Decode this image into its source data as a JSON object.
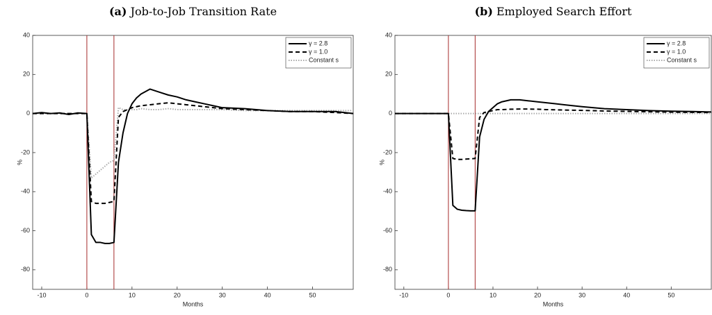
{
  "chart_data": [
    {
      "type": "line",
      "panel_label": "(a)",
      "title": "Job-to-Job Transition Rate",
      "xlabel": "Months",
      "ylabel": "%",
      "xlim": [
        -12,
        59
      ],
      "xticks": [
        -10,
        0,
        10,
        20,
        30,
        40,
        50
      ],
      "ylim": [
        -90,
        40
      ],
      "yticks": [
        -80,
        -60,
        -40,
        -20,
        0,
        20,
        40
      ],
      "vlines": [
        0,
        6
      ],
      "vline_color": "#a52a2a",
      "legend": "upper right",
      "x": [
        -12,
        -10,
        -8,
        -6,
        -4,
        -2,
        0,
        1,
        2,
        3,
        4,
        5,
        6,
        7,
        8,
        9,
        10,
        11,
        12,
        14,
        16,
        18,
        20,
        22,
        24,
        26,
        28,
        30,
        35,
        40,
        45,
        50,
        55,
        59
      ],
      "series": [
        {
          "name": "γ = 2.8",
          "color": "#000000",
          "style": "solid",
          "values": [
            0,
            0.5,
            0,
            0.3,
            -0.5,
            0.3,
            0,
            -62,
            -66,
            -66,
            -66.5,
            -66.5,
            -66,
            -25,
            -10,
            0,
            5,
            8,
            10,
            12.5,
            11,
            9.5,
            8.5,
            7,
            6,
            5,
            4,
            3,
            2.5,
            1.5,
            1,
            1,
            1,
            0
          ]
        },
        {
          "name": "γ = 1.0",
          "color": "#000000",
          "style": "dashed",
          "values": [
            0,
            0,
            0,
            0,
            0,
            0,
            0,
            -45,
            -46,
            -46,
            -46,
            -45.5,
            -45,
            -2,
            1,
            2,
            3,
            3.5,
            4,
            4.5,
            5,
            5.5,
            5,
            4.5,
            4,
            3.5,
            3,
            2.5,
            2,
            1.5,
            1,
            1,
            0.5,
            0
          ]
        },
        {
          "name": "Constant s",
          "color": "#aaaaaa",
          "style": "dotted",
          "values": [
            0,
            0,
            0,
            0,
            0,
            0,
            0,
            -33,
            -31,
            -29,
            -27,
            -25,
            -24,
            3,
            2,
            2,
            2,
            2,
            2.5,
            2,
            2,
            2.5,
            2,
            2,
            2,
            2,
            2,
            2,
            1.5,
            1.5,
            1.5,
            1.5,
            1.5,
            1.5
          ]
        }
      ]
    },
    {
      "type": "line",
      "panel_label": "(b)",
      "title": "Employed Search Effort",
      "xlabel": "Months",
      "ylabel": "%",
      "xlim": [
        -12,
        59
      ],
      "xticks": [
        -10,
        0,
        10,
        20,
        30,
        40,
        50
      ],
      "ylim": [
        -90,
        40
      ],
      "yticks": [
        -80,
        -60,
        -40,
        -20,
        0,
        20,
        40
      ],
      "vlines": [
        0,
        6
      ],
      "vline_color": "#a52a2a",
      "legend": "upper right",
      "x": [
        -12,
        -10,
        -8,
        -6,
        -4,
        -2,
        0,
        1,
        2,
        3,
        4,
        5,
        6,
        7,
        8,
        9,
        10,
        11,
        12,
        14,
        16,
        18,
        20,
        22,
        24,
        26,
        28,
        30,
        35,
        40,
        45,
        50,
        55,
        59
      ],
      "series": [
        {
          "name": "γ = 2.8",
          "color": "#000000",
          "style": "solid",
          "values": [
            0,
            0,
            0,
            0,
            0,
            0,
            0,
            -47,
            -49,
            -49.5,
            -49.7,
            -49.8,
            -49.8,
            -12,
            -3,
            1,
            3,
            5,
            6,
            7,
            7,
            6.5,
            6,
            5.5,
            5,
            4.5,
            4,
            3.5,
            2.5,
            2,
            1.5,
            1.2,
            1,
            0.8
          ]
        },
        {
          "name": "γ = 1.0",
          "color": "#000000",
          "style": "dashed",
          "values": [
            0,
            0,
            0,
            0,
            0,
            0,
            0,
            -23,
            -23.5,
            -23.5,
            -23.3,
            -23.2,
            -23,
            -2,
            0.5,
            1,
            1.5,
            2,
            2,
            2.2,
            2.3,
            2.3,
            2.2,
            2,
            1.9,
            1.8,
            1.7,
            1.6,
            1.3,
            1.1,
            0.9,
            0.7,
            0.6,
            0.5
          ]
        },
        {
          "name": "Constant s",
          "color": "#aaaaaa",
          "style": "dotted",
          "values": [
            0,
            0,
            0,
            0,
            0,
            0,
            0,
            0,
            0,
            0,
            0,
            0,
            0,
            0,
            0,
            0,
            0,
            0,
            0,
            0,
            0,
            0,
            0,
            0,
            0,
            0,
            0,
            0,
            0,
            0,
            0,
            0,
            0,
            0
          ]
        }
      ]
    }
  ]
}
